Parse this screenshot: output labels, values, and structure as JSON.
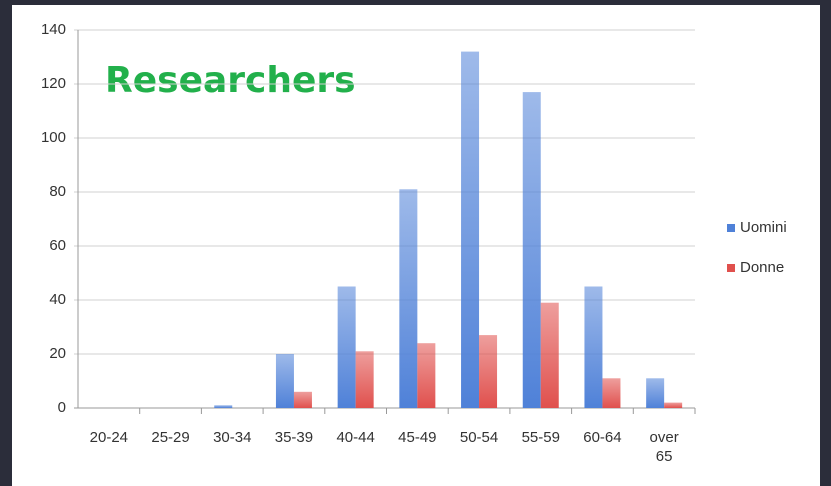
{
  "chart_data": {
    "type": "bar",
    "title": "Researchers",
    "categories": [
      "20-24",
      "25-29",
      "30-34",
      "35-39",
      "40-44",
      "45-49",
      "50-54",
      "55-59",
      "60-64",
      "over 65"
    ],
    "series": [
      {
        "name": "Uomini",
        "color": "#4f81d8",
        "values": [
          0,
          0,
          1,
          20,
          45,
          81,
          132,
          117,
          45,
          11
        ]
      },
      {
        "name": "Donne",
        "color": "#e0504d",
        "values": [
          0,
          0,
          0,
          6,
          21,
          24,
          27,
          39,
          11,
          2
        ]
      }
    ],
    "ylim": [
      0,
      140
    ],
    "yticks": [
      0,
      20,
      40,
      60,
      80,
      100,
      120,
      140
    ],
    "grid": true,
    "legend": "right"
  }
}
